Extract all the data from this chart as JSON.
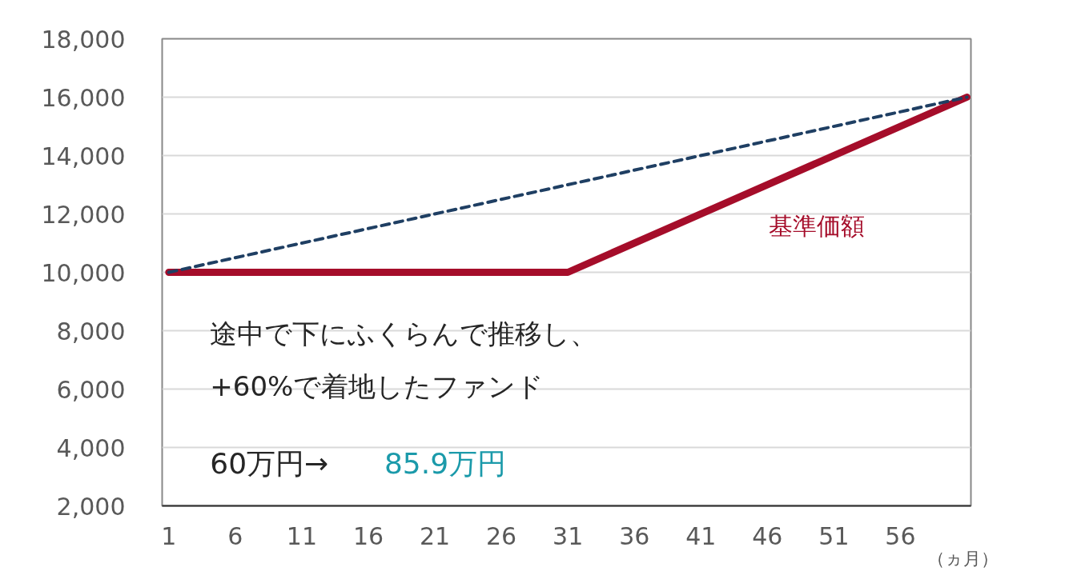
{
  "chart_data": {
    "type": "line",
    "xlabel": "（ヵ月）",
    "x": [
      1,
      31,
      61
    ],
    "xlim": [
      0.5,
      61.3
    ],
    "xticks": [
      1,
      6,
      11,
      16,
      21,
      26,
      31,
      36,
      41,
      46,
      51,
      56
    ],
    "ylim": [
      2000,
      18000
    ],
    "yticks": [
      {
        "value": 2000,
        "label": "2,000"
      },
      {
        "value": 4000,
        "label": "4,000"
      },
      {
        "value": 6000,
        "label": "6,000"
      },
      {
        "value": 8000,
        "label": "8,000"
      },
      {
        "value": 10000,
        "label": "10,000"
      },
      {
        "value": 12000,
        "label": "12,000"
      },
      {
        "value": 14000,
        "label": "14,000"
      },
      {
        "value": 16000,
        "label": "16,000"
      },
      {
        "value": 18000,
        "label": "18,000"
      }
    ],
    "grid": "y",
    "series": [
      {
        "name": "基準価額",
        "color": "#a50d2a",
        "values": [
          10000,
          10000,
          16000
        ],
        "line_style": "solid"
      },
      {
        "color": "#1f3f63",
        "x": [
          1,
          61
        ],
        "values": [
          10000,
          16000
        ],
        "line_style": "dashed"
      }
    ],
    "annotations": [
      "途中で下にふくらんで推移し、",
      "+60%で着地したファンド",
      "60万円→",
      "85.9万円"
    ]
  }
}
